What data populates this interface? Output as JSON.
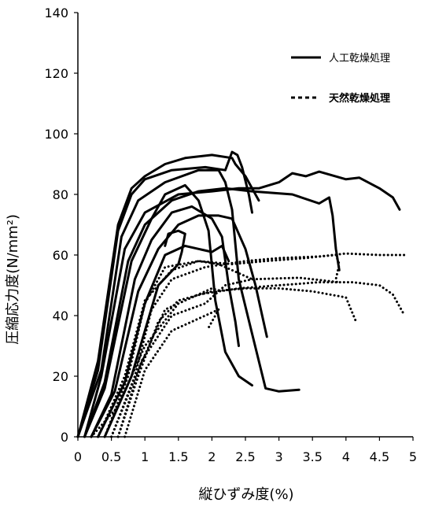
{
  "chart_data": {
    "type": "line",
    "title": "",
    "xlabel": "縦ひずみ度(%)",
    "ylabel": "圧縮応力度(N/mm²)",
    "xlim": [
      0,
      5
    ],
    "ylim": [
      0,
      140
    ],
    "x_ticks": [
      "0",
      "0.5",
      "1",
      "1.5",
      "2",
      "2.5",
      "3",
      "3.5",
      "4",
      "4.5",
      "5"
    ],
    "y_ticks": [
      "0",
      "20",
      "40",
      "60",
      "80",
      "100",
      "120",
      "140"
    ],
    "legend_position": "top-right",
    "legend": [
      {
        "label": "人工乾燥処理",
        "style": "solid"
      },
      {
        "label": "天然乾燥処理",
        "style": "dotted"
      }
    ],
    "series": [
      {
        "group": "solid",
        "points": [
          [
            0,
            0
          ],
          [
            0.3,
            25
          ],
          [
            0.6,
            70
          ],
          [
            0.8,
            82
          ],
          [
            1.0,
            86
          ],
          [
            1.3,
            90
          ],
          [
            1.6,
            92
          ],
          [
            2.0,
            93
          ],
          [
            2.3,
            92
          ],
          [
            2.35,
            90
          ],
          [
            2.5,
            86
          ],
          [
            2.6,
            82
          ],
          [
            2.7,
            78
          ]
        ]
      },
      {
        "group": "solid",
        "points": [
          [
            0,
            0
          ],
          [
            0.3,
            22
          ],
          [
            0.6,
            68
          ],
          [
            0.8,
            80
          ],
          [
            1.0,
            85
          ],
          [
            1.4,
            88
          ],
          [
            1.9,
            89
          ],
          [
            2.2,
            88
          ],
          [
            2.3,
            94
          ],
          [
            2.38,
            93
          ],
          [
            2.45,
            89
          ],
          [
            2.55,
            80
          ],
          [
            2.6,
            74
          ]
        ]
      },
      {
        "group": "solid",
        "points": [
          [
            0,
            0
          ],
          [
            0.35,
            22
          ],
          [
            0.65,
            66
          ],
          [
            0.9,
            78
          ],
          [
            1.3,
            84
          ],
          [
            1.8,
            88
          ],
          [
            2.1,
            88
          ],
          [
            2.2,
            84
          ],
          [
            2.3,
            75
          ],
          [
            2.4,
            52
          ],
          [
            2.6,
            34
          ],
          [
            2.8,
            16
          ],
          [
            3.0,
            15
          ],
          [
            3.3,
            15.5
          ]
        ]
      },
      {
        "group": "solid",
        "points": [
          [
            0.1,
            0
          ],
          [
            0.35,
            20
          ],
          [
            0.7,
            62
          ],
          [
            1.0,
            74
          ],
          [
            1.5,
            80
          ],
          [
            2.0,
            81
          ],
          [
            2.4,
            82
          ],
          [
            2.7,
            82
          ],
          [
            3.0,
            84
          ],
          [
            3.2,
            87
          ],
          [
            3.4,
            86
          ],
          [
            3.6,
            87.5
          ],
          [
            4.0,
            85
          ],
          [
            4.2,
            85.5
          ],
          [
            4.5,
            82
          ],
          [
            4.7,
            79
          ],
          [
            4.8,
            75
          ]
        ]
      },
      {
        "group": "solid",
        "points": [
          [
            0.1,
            0
          ],
          [
            0.4,
            18
          ],
          [
            0.75,
            58
          ],
          [
            1.0,
            70
          ],
          [
            1.4,
            78
          ],
          [
            1.8,
            81
          ],
          [
            2.2,
            82
          ],
          [
            2.6,
            81
          ],
          [
            3.2,
            80
          ],
          [
            3.6,
            77
          ],
          [
            3.75,
            79
          ],
          [
            3.8,
            73
          ],
          [
            3.85,
            62
          ],
          [
            3.9,
            55
          ]
        ]
      },
      {
        "group": "solid",
        "points": [
          [
            0.1,
            0
          ],
          [
            0.4,
            16
          ],
          [
            0.8,
            58
          ],
          [
            1.1,
            72
          ],
          [
            1.3,
            80
          ],
          [
            1.6,
            83
          ],
          [
            1.8,
            78
          ],
          [
            1.95,
            68
          ],
          [
            2.05,
            45
          ],
          [
            2.2,
            28
          ],
          [
            2.4,
            20
          ],
          [
            2.6,
            17
          ]
        ]
      },
      {
        "group": "solid",
        "points": [
          [
            0.2,
            0
          ],
          [
            0.5,
            14
          ],
          [
            0.85,
            52
          ],
          [
            1.1,
            65
          ],
          [
            1.4,
            74
          ],
          [
            1.7,
            76
          ],
          [
            2.0,
            72
          ],
          [
            2.15,
            66
          ],
          [
            2.25,
            50
          ],
          [
            2.35,
            38
          ],
          [
            2.4,
            30
          ]
        ]
      },
      {
        "group": "solid",
        "points": [
          [
            0.2,
            0
          ],
          [
            0.55,
            15
          ],
          [
            0.9,
            48
          ],
          [
            1.2,
            62
          ],
          [
            1.5,
            70
          ],
          [
            1.8,
            73
          ],
          [
            2.1,
            73
          ],
          [
            2.3,
            72
          ],
          [
            2.5,
            62
          ],
          [
            2.65,
            50
          ],
          [
            2.75,
            40
          ],
          [
            2.82,
            33
          ]
        ]
      },
      {
        "group": "solid",
        "points": [
          [
            0.3,
            0
          ],
          [
            0.7,
            18
          ],
          [
            1.0,
            44
          ],
          [
            1.3,
            60
          ],
          [
            1.6,
            63
          ],
          [
            1.8,
            62
          ],
          [
            2.0,
            61
          ],
          [
            2.15,
            63
          ],
          [
            2.25,
            58
          ]
        ]
      },
      {
        "group": "solid",
        "points": [
          [
            0.4,
            0
          ],
          [
            0.8,
            20
          ],
          [
            1.2,
            50
          ],
          [
            1.5,
            57
          ],
          [
            1.55,
            61
          ],
          [
            1.6,
            67
          ],
          [
            1.5,
            68
          ],
          [
            1.35,
            67
          ],
          [
            1.3,
            63
          ]
        ]
      },
      {
        "group": "dotted",
        "points": [
          [
            0.4,
            0
          ],
          [
            0.75,
            20
          ],
          [
            1.0,
            44
          ],
          [
            1.3,
            56
          ],
          [
            1.8,
            58
          ],
          [
            2.3,
            57
          ],
          [
            2.8,
            58
          ],
          [
            3.4,
            59
          ],
          [
            4.0,
            60.5
          ],
          [
            4.5,
            60
          ],
          [
            4.9,
            60
          ]
        ]
      },
      {
        "group": "dotted",
        "points": [
          [
            0.5,
            0
          ],
          [
            0.85,
            20
          ],
          [
            1.1,
            42
          ],
          [
            1.4,
            52
          ],
          [
            1.9,
            56
          ],
          [
            2.5,
            58
          ],
          [
            3.0,
            59
          ],
          [
            3.6,
            59.5
          ],
          [
            3.85,
            60
          ],
          [
            3.9,
            57
          ],
          [
            3.85,
            52
          ]
        ]
      },
      {
        "group": "dotted",
        "points": [
          [
            0.3,
            0
          ],
          [
            0.7,
            20
          ],
          [
            1.0,
            45
          ],
          [
            1.4,
            55
          ],
          [
            1.8,
            58
          ],
          [
            2.1,
            57
          ],
          [
            2.4,
            54
          ],
          [
            2.6,
            52
          ]
        ]
      },
      {
        "group": "dotted",
        "points": [
          [
            0.6,
            0
          ],
          [
            0.9,
            20
          ],
          [
            1.2,
            38
          ],
          [
            1.5,
            45
          ],
          [
            2.0,
            48
          ],
          [
            2.5,
            49
          ],
          [
            3.0,
            49
          ],
          [
            3.5,
            48
          ],
          [
            4.0,
            46
          ],
          [
            4.15,
            38
          ]
        ]
      },
      {
        "group": "dotted",
        "points": [
          [
            0.5,
            0
          ],
          [
            0.9,
            22
          ],
          [
            1.3,
            42
          ],
          [
            1.8,
            47
          ],
          [
            2.4,
            49
          ],
          [
            3.0,
            50
          ],
          [
            3.6,
            51
          ],
          [
            4.1,
            51
          ],
          [
            4.5,
            50
          ],
          [
            4.7,
            47
          ],
          [
            4.85,
            41
          ]
        ]
      },
      {
        "group": "dotted",
        "points": [
          [
            0.6,
            0
          ],
          [
            0.95,
            25
          ],
          [
            1.4,
            40
          ],
          [
            1.9,
            44
          ],
          [
            2.2,
            50
          ],
          [
            2.6,
            52
          ],
          [
            3.3,
            52.5
          ],
          [
            3.9,
            51
          ]
        ]
      },
      {
        "group": "dotted",
        "points": [
          [
            0.7,
            0
          ],
          [
            1.0,
            22
          ],
          [
            1.4,
            35
          ],
          [
            1.9,
            40
          ],
          [
            2.1,
            42
          ],
          [
            2.0,
            38
          ],
          [
            1.95,
            36
          ]
        ]
      },
      {
        "group": "dotted",
        "points": [
          [
            0.2,
            0
          ],
          [
            0.6,
            10
          ],
          [
            1.0,
            30
          ],
          [
            1.5,
            44
          ],
          [
            1.8,
            47
          ],
          [
            2.0,
            49
          ],
          [
            2.15,
            48
          ]
        ]
      }
    ]
  }
}
